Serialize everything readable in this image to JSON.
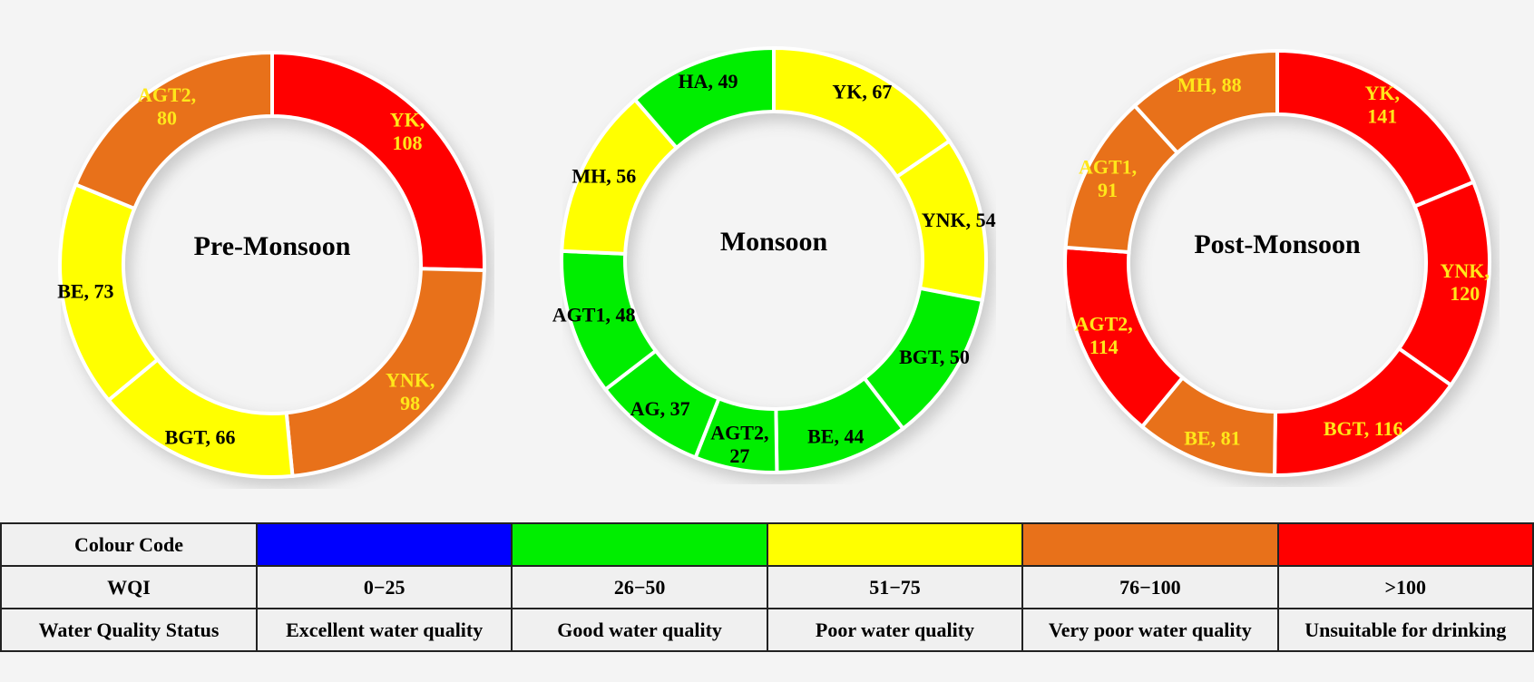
{
  "colors": {
    "excellent": "#0000FF",
    "good": "#00EE00",
    "poor": "#FFFF00",
    "very_poor": "#E8711A",
    "unsuitable": "#FF0000"
  },
  "chart_data": [
    {
      "type": "pie",
      "variant": "donut",
      "title": "Pre-Monsoon",
      "slices": [
        {
          "label": "YK",
          "value": 108,
          "color": "unsuitable",
          "text": "light"
        },
        {
          "label": "YNK",
          "value": 98,
          "color": "very_poor",
          "text": "light"
        },
        {
          "label": "BGT",
          "value": 66,
          "color": "poor",
          "text": "dark"
        },
        {
          "label": "BE",
          "value": 73,
          "color": "poor",
          "text": "dark"
        },
        {
          "label": "AGT2",
          "value": 80,
          "color": "very_poor",
          "text": "light"
        }
      ]
    },
    {
      "type": "pie",
      "variant": "donut",
      "title": "Monsoon",
      "slices": [
        {
          "label": "YK",
          "value": 67,
          "color": "poor",
          "text": "dark"
        },
        {
          "label": "YNK",
          "value": 54,
          "color": "poor",
          "text": "dark"
        },
        {
          "label": "BGT",
          "value": 50,
          "color": "good",
          "text": "dark"
        },
        {
          "label": "BE",
          "value": 44,
          "color": "good",
          "text": "dark"
        },
        {
          "label": "AGT2",
          "value": 27,
          "color": "good",
          "text": "dark"
        },
        {
          "label": "AG",
          "value": 37,
          "color": "good",
          "text": "dark"
        },
        {
          "label": "AGT1",
          "value": 48,
          "color": "good",
          "text": "dark"
        },
        {
          "label": "MH",
          "value": 56,
          "color": "poor",
          "text": "dark"
        },
        {
          "label": "HA",
          "value": 49,
          "color": "good",
          "text": "dark"
        }
      ]
    },
    {
      "type": "pie",
      "variant": "donut",
      "title": "Post-Monsoon",
      "slices": [
        {
          "label": "YK",
          "value": 141,
          "color": "unsuitable",
          "text": "light"
        },
        {
          "label": "YNK",
          "value": 120,
          "color": "unsuitable",
          "text": "light"
        },
        {
          "label": "BGT",
          "value": 116,
          "color": "unsuitable",
          "text": "light"
        },
        {
          "label": "BE",
          "value": 81,
          "color": "very_poor",
          "text": "light"
        },
        {
          "label": "AGT2",
          "value": 114,
          "color": "unsuitable",
          "text": "light"
        },
        {
          "label": "AGT1",
          "value": 91,
          "color": "very_poor",
          "text": "light"
        },
        {
          "label": "MH",
          "value": 88,
          "color": "very_poor",
          "text": "light"
        }
      ]
    }
  ],
  "table": {
    "row_headers": [
      "Colour Code",
      "WQI",
      "Water Quality Status"
    ],
    "columns": [
      {
        "color": "excellent",
        "range": "0−25",
        "status": "Excellent water quality"
      },
      {
        "color": "good",
        "range": "26−50",
        "status": "Good water quality"
      },
      {
        "color": "poor",
        "range": "51−75",
        "status": "Poor water quality"
      },
      {
        "color": "very_poor",
        "range": "76−100",
        "status": "Very poor water quality"
      },
      {
        "color": "unsuitable",
        "range": ">100",
        "status": "Unsuitable for drinking"
      }
    ]
  }
}
